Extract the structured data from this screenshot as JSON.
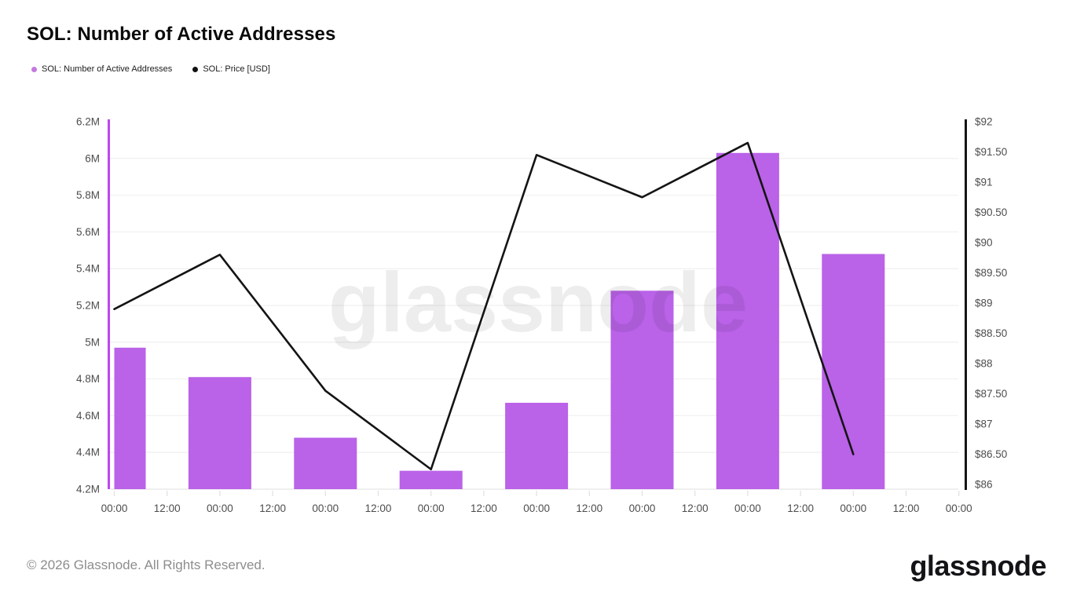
{
  "header": {
    "title": "SOL: Number of Active Addresses"
  },
  "legend": {
    "items": [
      {
        "label": "SOL: Number of Active Addresses",
        "marker": "dot",
        "color": "#c579e0"
      },
      {
        "label": "SOL: Price [USD]",
        "marker": "dot",
        "color": "#111111"
      }
    ]
  },
  "watermark": {
    "text": "glassnode"
  },
  "footer": {
    "copyright": "© 2026 Glassnode. All Rights Reserved.",
    "logo_text": "glassnode"
  },
  "chart_data": {
    "type": "bar+line",
    "title": "SOL: Number of Active Addresses",
    "x_tick_labels": [
      "00:00",
      "12:00",
      "00:00",
      "12:00",
      "00:00",
      "12:00",
      "00:00",
      "12:00",
      "00:00",
      "12:00",
      "00:00",
      "12:00",
      "00:00",
      "12:00",
      "00:00",
      "12:00",
      "00:00"
    ],
    "x_note": "8 daily data points at the 00:00 ticks; minor ticks every 12 hours",
    "series": [
      {
        "name": "SOL: Number of Active Addresses",
        "type": "bar",
        "axis": "left",
        "color": "#ba62e8",
        "values_millions": [
          4.97,
          4.81,
          4.48,
          4.3,
          4.67,
          5.28,
          6.03,
          5.48
        ]
      },
      {
        "name": "SOL: Price [USD]",
        "type": "line",
        "axis": "right",
        "color": "#141414",
        "values_usd": [
          88.9,
          89.8,
          87.55,
          86.25,
          91.45,
          90.75,
          91.65,
          86.5
        ]
      }
    ],
    "y_left": {
      "tick_labels": [
        "6.2M",
        "6M",
        "5.8M",
        "5.6M",
        "5.4M",
        "5.2M",
        "5M",
        "4.8M",
        "4.6M",
        "4.4M",
        "4.2M"
      ],
      "min": 4.2,
      "max": 6.2,
      "axis_color": "#bf45f0"
    },
    "y_right": {
      "tick_labels": [
        "$92",
        "$91.50",
        "$91",
        "$90.50",
        "$90",
        "$89.50",
        "$89",
        "$88.50",
        "$88",
        "$87.50",
        "$87",
        "$86.50",
        "$86"
      ],
      "min": 86,
      "max": 92,
      "axis_color": "#141414"
    },
    "grid": "horizontal-only",
    "legend_position": "top-left"
  }
}
